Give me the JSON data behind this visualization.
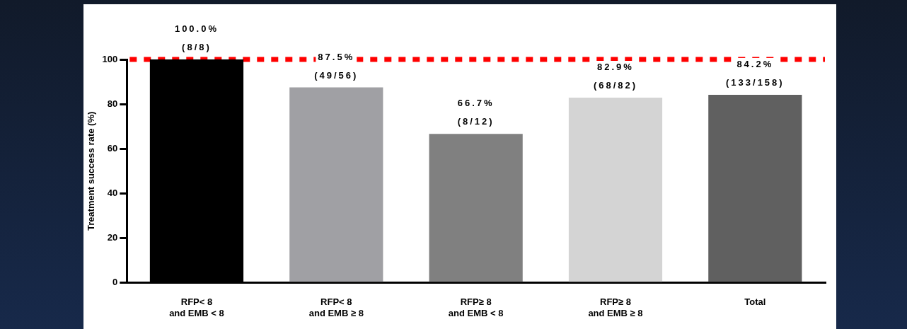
{
  "chart_data": {
    "type": "bar",
    "ylabel": "Treatment success rate (%)",
    "categories": [
      "RFP< 8\nand EMB < 8",
      "RFP< 8\nand EMB ≥ 8",
      "RFP≥ 8\nand EMB < 8",
      "RFP≥ 8\nand EMB ≥ 8",
      "Total"
    ],
    "values": [
      100,
      87.5,
      66.7,
      82.9,
      84.2
    ],
    "colors": [
      "#000000",
      "#a0a0a4",
      "#808080",
      "#d4d4d4",
      "#606060"
    ],
    "value_labels": [
      "100.0%\n(8/8)",
      "87.5%\n(49/56)",
      "66.7%\n(8/12)",
      "82.9%\n(68/82)",
      "84.2%\n(133/158)"
    ],
    "ylim": [
      0,
      100
    ],
    "yticks": [
      0,
      20,
      40,
      60,
      80,
      100
    ],
    "grid": false,
    "legend": false,
    "ref_lines": [
      {
        "axis": "y",
        "value": 100,
        "color": "#ff0000",
        "line_style": "dotted"
      }
    ]
  }
}
